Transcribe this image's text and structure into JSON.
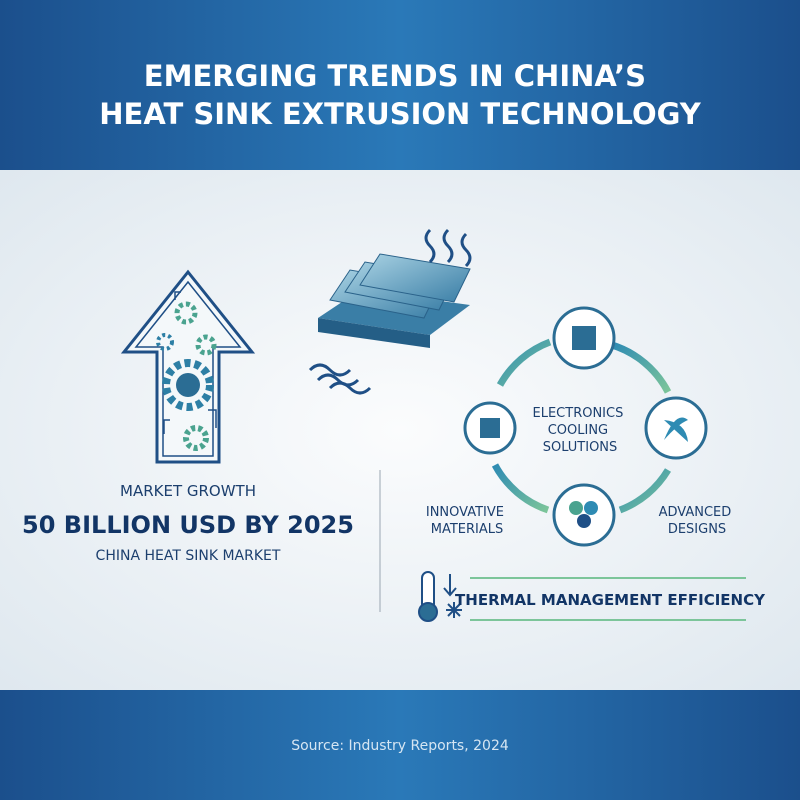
{
  "header": {
    "title": [
      "EMERGING TRENDS IN CHINA’S",
      "HEAT SINK EXTRUSION TECHNOLOGY"
    ]
  },
  "market": {
    "label": "MARKET GROWTH",
    "headline": "50 BILLION USD BY 2025",
    "subtitle": "CHINA HEAT SINK MARKET"
  },
  "cycle": {
    "center": [
      "ELECTRONICS",
      "COOLING",
      "SOLUTIONS"
    ],
    "left_label": [
      "INNOVATIVE",
      "MATERIALS"
    ],
    "right_label": [
      "ADVANCED",
      "DESIGNS"
    ]
  },
  "banner": {
    "text": "THERMAL MANAGEMENT EFFICIENCY"
  },
  "footer": {
    "source": "Source: Industry Reports, 2024"
  }
}
